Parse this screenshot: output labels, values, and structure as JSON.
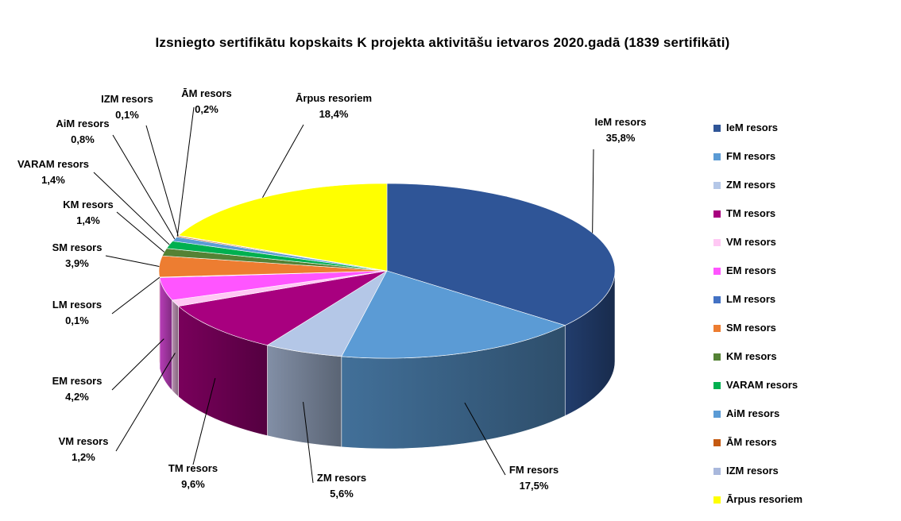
{
  "chart_data": {
    "type": "pie",
    "title": "Izsniegto sertifikātu kopskaits K projekta aktivitāšu ietvaros 2020.gadā (1839 sertifikāti)",
    "legend_position": "right",
    "slices": [
      {
        "label": "IeM resors",
        "value": 35.8,
        "value_text": "35,8%",
        "color": "#2F5597"
      },
      {
        "label": "FM resors",
        "value": 17.5,
        "value_text": "17,5%",
        "color": "#5B9BD5"
      },
      {
        "label": "ZM resors",
        "value": 5.6,
        "value_text": "5,6%",
        "color": "#B4C7E7"
      },
      {
        "label": "TM resors",
        "value": 9.6,
        "value_text": "9,6%",
        "color": "#A8007F"
      },
      {
        "label": "VM resors",
        "value": 1.2,
        "value_text": "1,2%",
        "color": "#FFC8F4"
      },
      {
        "label": "EM resors",
        "value": 4.2,
        "value_text": "4,2%",
        "color": "#FF55FF"
      },
      {
        "label": "LM resors",
        "value": 0.1,
        "value_text": "0,1%",
        "color": "#4472C4"
      },
      {
        "label": "SM resors",
        "value": 3.9,
        "value_text": "3,9%",
        "color": "#ED7D31"
      },
      {
        "label": "KM resors",
        "value": 1.4,
        "value_text": "1,4%",
        "color": "#548235"
      },
      {
        "label": "VARAM resors",
        "value": 1.4,
        "value_text": "1,4%",
        "color": "#00B050"
      },
      {
        "label": "AiM resors",
        "value": 0.8,
        "value_text": "0,8%",
        "color": "#5B9BD5"
      },
      {
        "label": "ĀM resors",
        "value": 0.2,
        "value_text": "0,2%",
        "color": "#C55A11"
      },
      {
        "label": "IZM resors",
        "value": 0.1,
        "value_text": "0,1%",
        "color": "#A9B8DC"
      },
      {
        "label": "Ārpus resoriem",
        "value": 18.4,
        "value_text": "18,4%",
        "color": "#FFFF00"
      }
    ]
  }
}
